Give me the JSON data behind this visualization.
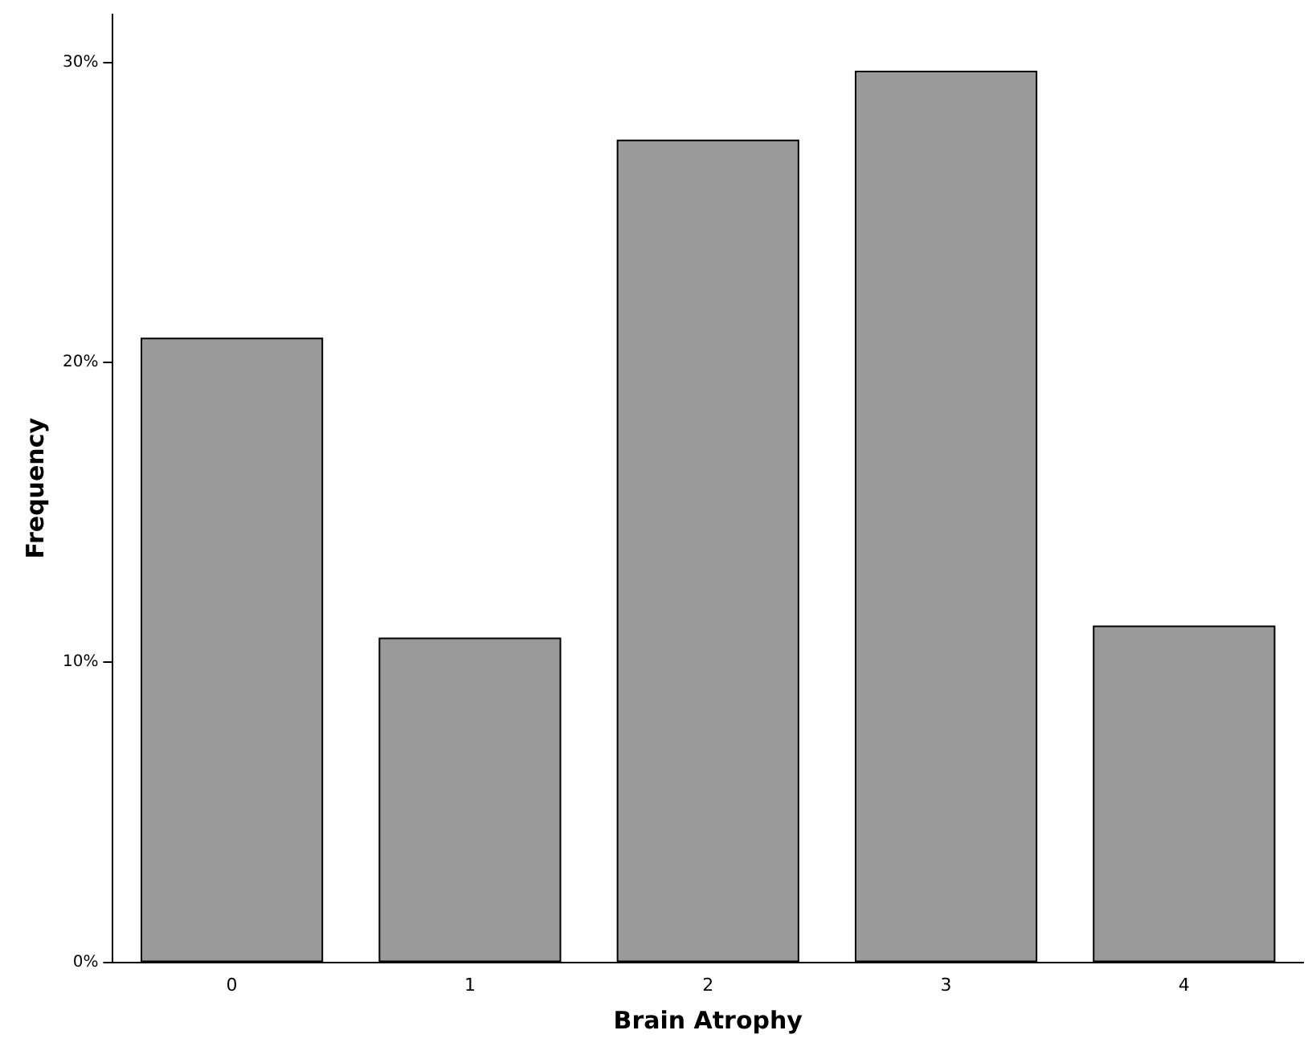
{
  "chart_data": {
    "type": "bar",
    "xlabel": "Brain Atrophy",
    "ylabel": "Frequency",
    "categories": [
      "0",
      "1",
      "2",
      "3",
      "4"
    ],
    "values": [
      20.8,
      10.8,
      27.4,
      29.7,
      11.2
    ],
    "color": "#9a9a9a",
    "ylim": [
      0,
      31.6
    ],
    "yticks": [
      {
        "value": 0,
        "label": "0%"
      },
      {
        "value": 10,
        "label": "10%"
      },
      {
        "value": 20,
        "label": "20%"
      },
      {
        "value": 30,
        "label": "30%"
      }
    ],
    "grid": false,
    "legend": false
  }
}
